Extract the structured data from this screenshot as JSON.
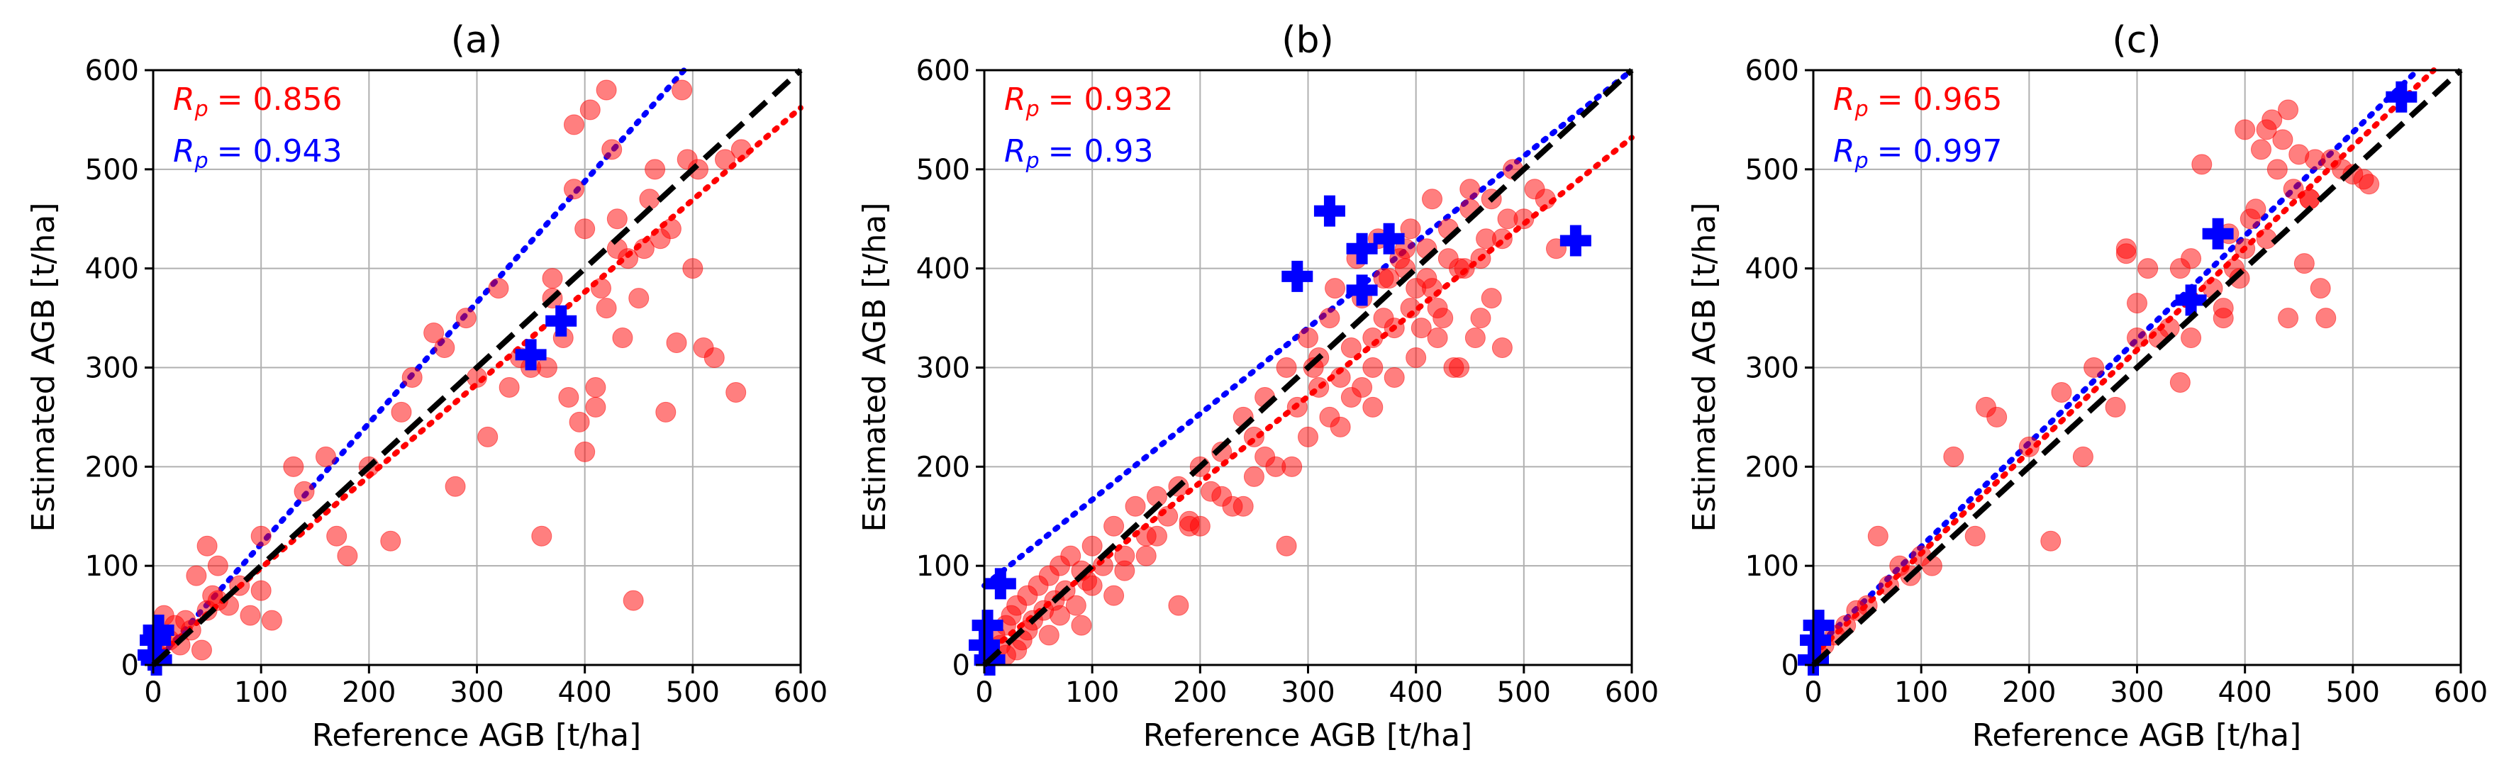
{
  "colors": {
    "inSitu": "#ff0000",
    "other": "#0000ff",
    "identity": "#000000",
    "grid": "#b0b0b0"
  },
  "chart_data": [
    {
      "type": "scatter",
      "title": "(a)",
      "xlabel": "Reference AGB [t/ha]",
      "ylabel": "Estimated AGB [t/ha]",
      "xlim": [
        0,
        600
      ],
      "ylim": [
        0,
        600
      ],
      "xticks": [
        "0",
        "100",
        "200",
        "300",
        "400",
        "500",
        "600"
      ],
      "yticks": [
        "0",
        "100",
        "200",
        "300",
        "400",
        "500",
        "600"
      ],
      "grid": true,
      "annotations": [
        {
          "text_symbol": "R",
          "text_sub": "p",
          "text_value": "= 0.856",
          "color": "red"
        },
        {
          "text_symbol": "R",
          "text_sub": "p",
          "text_value": "= 0.943",
          "color": "blue"
        }
      ],
      "identity_line": {
        "x": [
          0,
          600
        ],
        "y": [
          0,
          600
        ],
        "style": "dashed",
        "color": "black"
      },
      "fit_lines": [
        {
          "name": "red fit",
          "color": "red",
          "style": "dotted",
          "x": [
            0,
            600
          ],
          "y": [
            5,
            562
          ]
        },
        {
          "name": "blue fit",
          "color": "blue",
          "style": "dotted",
          "x": [
            0,
            492
          ],
          "y": [
            0,
            600
          ]
        }
      ],
      "series": [
        {
          "name": "red points",
          "marker": "circle",
          "color": "red",
          "x": [
            5,
            8,
            10,
            15,
            20,
            25,
            30,
            35,
            40,
            45,
            50,
            55,
            60,
            70,
            80,
            90,
            100,
            110,
            50,
            60,
            100,
            130,
            140,
            160,
            170,
            180,
            200,
            220,
            230,
            240,
            260,
            270,
            280,
            290,
            300,
            310,
            320,
            330,
            340,
            350,
            360,
            365,
            370,
            380,
            385,
            390,
            395,
            400,
            405,
            410,
            415,
            420,
            425,
            430,
            435,
            440,
            445,
            450,
            455,
            460,
            465,
            470,
            475,
            480,
            485,
            490,
            495,
            500,
            505,
            510,
            520,
            530,
            540,
            545,
            420,
            400,
            410,
            430,
            370,
            390
          ],
          "y": [
            10,
            30,
            50,
            25,
            40,
            20,
            45,
            35,
            90,
            15,
            120,
            70,
            100,
            60,
            80,
            50,
            75,
            45,
            55,
            65,
            130,
            200,
            175,
            210,
            130,
            110,
            200,
            125,
            255,
            290,
            335,
            320,
            180,
            350,
            290,
            230,
            380,
            280,
            310,
            300,
            130,
            300,
            370,
            330,
            270,
            480,
            245,
            440,
            560,
            280,
            380,
            580,
            520,
            450,
            330,
            410,
            65,
            370,
            420,
            470,
            500,
            430,
            255,
            440,
            325,
            580,
            510,
            400,
            500,
            320,
            310,
            510,
            275,
            520,
            360,
            215,
            260,
            420,
            390,
            545
          ]
        },
        {
          "name": "blue points",
          "marker": "plus",
          "color": "blue",
          "x": [
            0,
            2,
            5,
            3,
            350,
            378
          ],
          "y": [
            10,
            25,
            35,
            5,
            313,
            347
          ]
        }
      ]
    },
    {
      "type": "scatter",
      "title": "(b)",
      "xlabel": "Reference AGB [t/ha]",
      "ylabel": "Estimated AGB [t/ha]",
      "xlim": [
        0,
        600
      ],
      "ylim": [
        0,
        600
      ],
      "xticks": [
        "0",
        "100",
        "200",
        "300",
        "400",
        "500",
        "600"
      ],
      "yticks": [
        "0",
        "100",
        "200",
        "300",
        "400",
        "500",
        "600"
      ],
      "grid": true,
      "annotations": [
        {
          "text_symbol": "R",
          "text_sub": "p",
          "text_value": "= 0.932",
          "color": "red"
        },
        {
          "text_symbol": "R",
          "text_sub": "p",
          "text_value": "= 0.93",
          "color": "blue"
        }
      ],
      "identity_line": {
        "x": [
          0,
          600
        ],
        "y": [
          0,
          600
        ],
        "style": "dashed",
        "color": "black"
      },
      "fit_lines": [
        {
          "name": "red fit",
          "color": "red",
          "style": "dotted",
          "x": [
            0,
            600
          ],
          "y": [
            10,
            532
          ]
        },
        {
          "name": "blue fit",
          "color": "blue",
          "style": "dotted",
          "x": [
            0,
            600
          ],
          "y": [
            80,
            600
          ]
        }
      ],
      "series": [
        {
          "name": "red points",
          "marker": "circle",
          "color": "red",
          "x": [
            5,
            10,
            15,
            20,
            25,
            30,
            35,
            40,
            45,
            50,
            55,
            60,
            65,
            70,
            75,
            80,
            85,
            90,
            95,
            100,
            110,
            120,
            130,
            140,
            150,
            160,
            170,
            180,
            190,
            200,
            210,
            220,
            230,
            240,
            250,
            260,
            270,
            280,
            290,
            300,
            310,
            320,
            330,
            340,
            350,
            360,
            370,
            380,
            390,
            400,
            410,
            420,
            430,
            440,
            450,
            460,
            470,
            480,
            490,
            500,
            510,
            520,
            530,
            300,
            320,
            340,
            360,
            380,
            400,
            420,
            440,
            460,
            480,
            350,
            370,
            390,
            410,
            430,
            450,
            470,
            330,
            280,
            260,
            240,
            200,
            180,
            150,
            120,
            90,
            60,
            30,
            20,
            40,
            70,
            100,
            130,
            160,
            190,
            220,
            250,
            310,
            360,
            395,
            415,
            445,
            465,
            485,
            405,
            425,
            385,
            435,
            455,
            375,
            395,
            415,
            345,
            365,
            325,
            305,
            285
          ],
          "y": [
            10,
            30,
            20,
            40,
            50,
            60,
            25,
            70,
            45,
            80,
            55,
            90,
            65,
            100,
            75,
            110,
            60,
            95,
            85,
            120,
            100,
            140,
            110,
            160,
            130,
            170,
            150,
            180,
            140,
            200,
            175,
            215,
            160,
            250,
            230,
            270,
            200,
            300,
            260,
            330,
            280,
            350,
            290,
            320,
            370,
            300,
            390,
            340,
            400,
            380,
            420,
            360,
            440,
            400,
            460,
            410,
            470,
            430,
            500,
            450,
            480,
            470,
            420,
            230,
            250,
            270,
            260,
            290,
            310,
            330,
            300,
            350,
            320,
            280,
            350,
            420,
            390,
            410,
            480,
            370,
            240,
            120,
            210,
            160,
            140,
            60,
            110,
            70,
            40,
            30,
            15,
            10,
            35,
            50,
            80,
            95,
            130,
            145,
            170,
            190,
            310,
            330,
            360,
            380,
            400,
            430,
            450,
            340,
            350,
            410,
            300,
            330,
            390,
            440,
            470,
            410,
            430,
            380,
            300,
            200
          ]
        },
        {
          "name": "blue points",
          "marker": "plus",
          "color": "blue",
          "x": [
            0,
            3,
            5,
            15,
            290,
            320,
            350,
            350,
            375,
            548
          ],
          "y": [
            20,
            40,
            5,
            82,
            392,
            458,
            420,
            378,
            430,
            428
          ]
        }
      ]
    },
    {
      "type": "scatter",
      "title": "(c)",
      "xlabel": "Reference AGB [t/ha]",
      "ylabel": "Estimated AGB [t/ha]",
      "xlim": [
        0,
        600
      ],
      "ylim": [
        0,
        600
      ],
      "xticks": [
        "0",
        "100",
        "200",
        "300",
        "400",
        "500",
        "600"
      ],
      "yticks": [
        "0",
        "100",
        "200",
        "300",
        "400",
        "500",
        "600"
      ],
      "grid": true,
      "annotations": [
        {
          "text_symbol": "R",
          "text_sub": "p",
          "text_value": "= 0.965",
          "color": "red"
        },
        {
          "text_symbol": "R",
          "text_sub": "p",
          "text_value": "= 0.997",
          "color": "blue"
        }
      ],
      "identity_line": {
        "x": [
          0,
          600
        ],
        "y": [
          0,
          600
        ],
        "style": "dashed",
        "color": "black"
      },
      "fit_lines": [
        {
          "name": "red fit",
          "color": "red",
          "style": "dotted",
          "x": [
            0,
            575
          ],
          "y": [
            10,
            600
          ]
        },
        {
          "name": "blue fit",
          "color": "blue",
          "style": "dotted",
          "x": [
            0,
            560
          ],
          "y": [
            15,
            600
          ]
        }
      ],
      "series": [
        {
          "name": "red points",
          "marker": "circle",
          "color": "red",
          "x": [
            5,
            10,
            20,
            30,
            40,
            50,
            60,
            70,
            80,
            90,
            100,
            110,
            130,
            150,
            160,
            170,
            200,
            220,
            230,
            250,
            260,
            280,
            290,
            300,
            310,
            320,
            330,
            340,
            350,
            360,
            370,
            380,
            385,
            390,
            395,
            400,
            405,
            410,
            415,
            420,
            425,
            430,
            435,
            440,
            445,
            450,
            455,
            460,
            465,
            470,
            475,
            480,
            490,
            500,
            510,
            515,
            400,
            420,
            440,
            460,
            350,
            340,
            380,
            300,
            290
          ],
          "y": [
            10,
            20,
            30,
            40,
            55,
            60,
            130,
            80,
            100,
            90,
            110,
            100,
            210,
            130,
            260,
            250,
            220,
            125,
            275,
            210,
            300,
            260,
            420,
            365,
            400,
            330,
            340,
            285,
            410,
            505,
            380,
            350,
            435,
            400,
            390,
            420,
            450,
            460,
            520,
            430,
            550,
            500,
            530,
            560,
            480,
            515,
            405,
            470,
            510,
            380,
            350,
            510,
            500,
            495,
            490,
            485,
            540,
            540,
            350,
            470,
            330,
            400,
            360,
            330,
            415
          ]
        },
        {
          "name": "blue points",
          "marker": "plus",
          "color": "blue",
          "x": [
            0,
            2,
            5,
            350,
            375,
            545
          ],
          "y": [
            5,
            25,
            40,
            368,
            435,
            573
          ]
        }
      ]
    }
  ]
}
